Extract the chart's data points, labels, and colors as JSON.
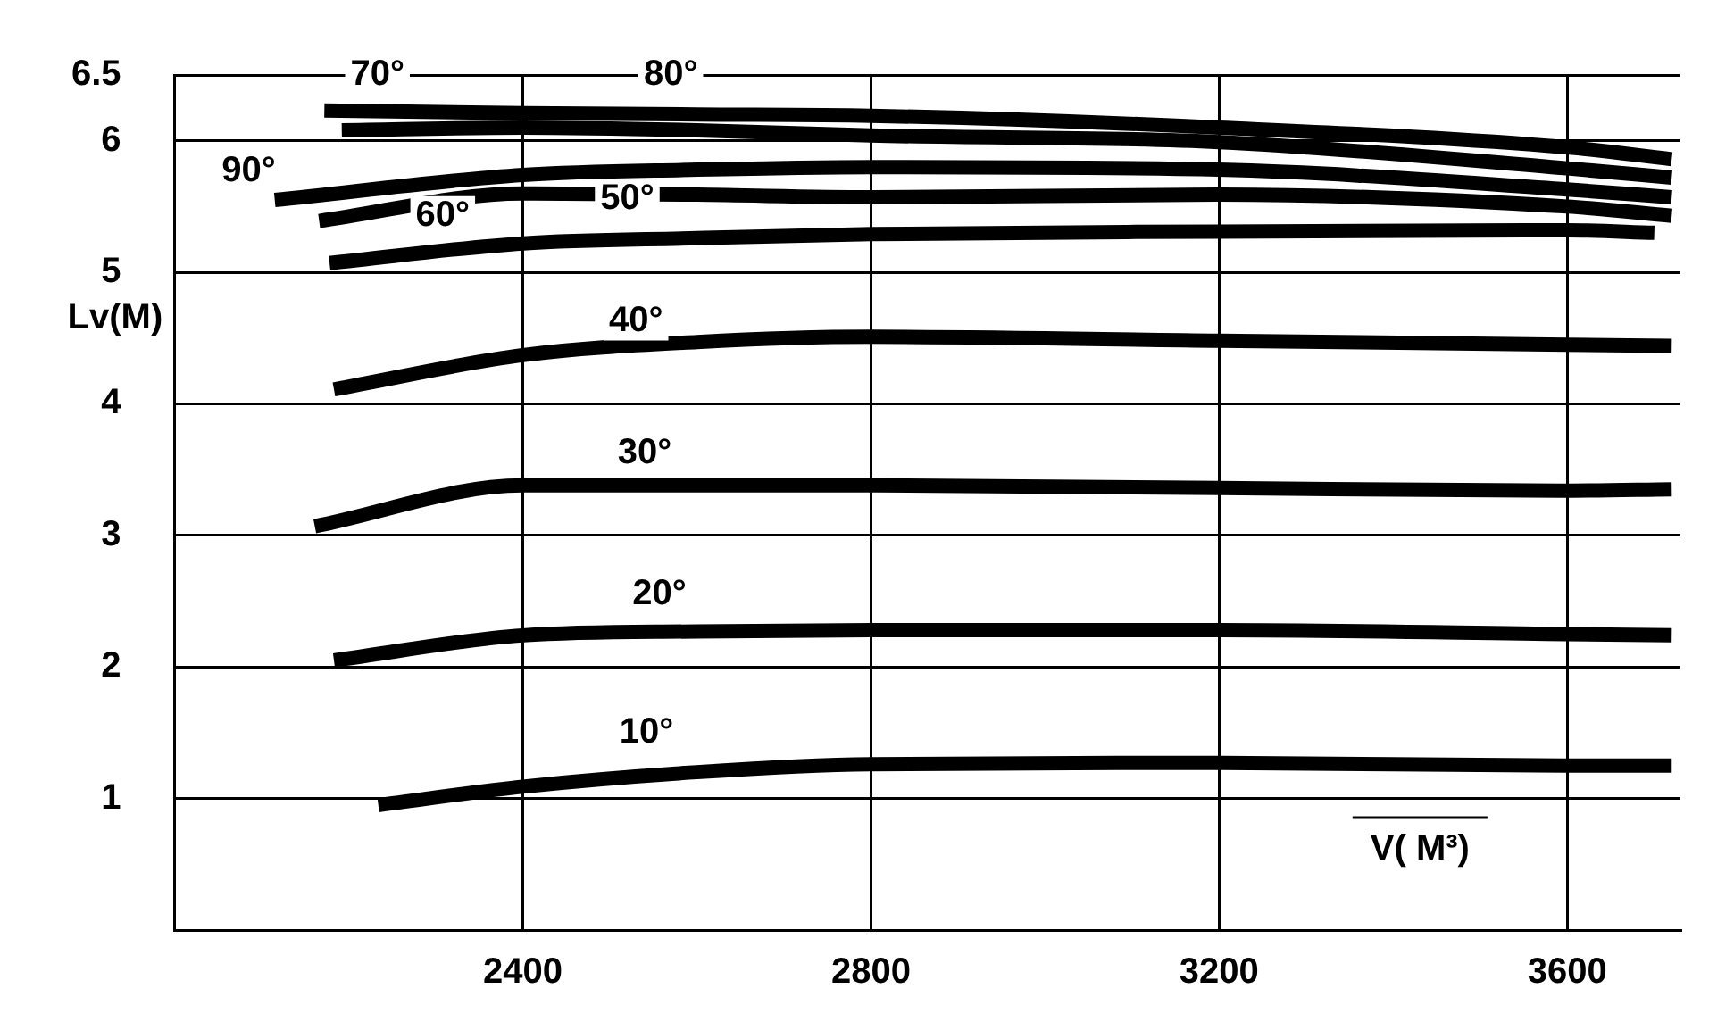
{
  "chart_data": {
    "type": "line",
    "xlabel": "V( M³)",
    "ylabel": "Lv(M)",
    "xlim": [
      2000,
      3730
    ],
    "ylim": [
      0,
      6.5
    ],
    "xticks": [
      2400,
      2800,
      3200,
      3600
    ],
    "yticks": [
      1,
      2,
      3,
      4,
      5,
      6,
      6.5
    ],
    "grid": true,
    "legend": false,
    "marker": "none",
    "line_style": "solid",
    "series": [
      {
        "color": "#000000",
        "x": [
          2234,
          2400,
          2600,
          2800,
          3200,
          3600,
          3720
        ],
        "values": [
          0.95,
          1.09,
          1.2,
          1.26,
          1.27,
          1.25,
          1.25
        ]
      },
      {
        "color": "#000000",
        "x": [
          2183,
          2400,
          2600,
          2800,
          3200,
          3600,
          3720
        ],
        "values": [
          2.05,
          2.24,
          2.27,
          2.28,
          2.28,
          2.25,
          2.24
        ]
      },
      {
        "color": "#000000",
        "x": [
          2161,
          2400,
          2600,
          2800,
          3200,
          3600,
          3720
        ],
        "values": [
          3.07,
          3.38,
          3.38,
          3.38,
          3.36,
          3.34,
          3.35
        ]
      },
      {
        "color": "#000000",
        "x": [
          2183,
          2400,
          2600,
          2800,
          3200,
          3600,
          3720
        ],
        "values": [
          4.11,
          4.37,
          4.47,
          4.51,
          4.48,
          4.45,
          4.44
        ]
      },
      {
        "color": "#000000",
        "x": [
          2178,
          2400,
          2600,
          2800,
          3200,
          3600,
          3700
        ],
        "values": [
          5.07,
          5.22,
          5.26,
          5.29,
          5.31,
          5.32,
          5.3
        ]
      },
      {
        "color": "#000000",
        "x": [
          2166,
          2400,
          2600,
          2800,
          3200,
          3600,
          3720
        ],
        "values": [
          5.39,
          5.6,
          5.59,
          5.57,
          5.59,
          5.5,
          5.43
        ]
      },
      {
        "color": "#000000",
        "x": [
          2115,
          2400,
          2600,
          2800,
          3200,
          3600,
          3720
        ],
        "values": [
          5.55,
          5.74,
          5.78,
          5.8,
          5.78,
          5.63,
          5.57
        ]
      },
      {
        "color": "#000000",
        "x": [
          2192,
          2400,
          2600,
          2800,
          3200,
          3600,
          3720
        ],
        "values": [
          6.08,
          6.1,
          6.08,
          6.04,
          5.99,
          5.79,
          5.72
        ]
      },
      {
        "color": "#000000",
        "x": [
          2172,
          2400,
          2600,
          2800,
          3200,
          3600,
          3720
        ],
        "values": [
          6.23,
          6.21,
          6.2,
          6.19,
          6.1,
          5.95,
          5.86
        ]
      }
    ],
    "annotations": [
      {
        "text": "10°",
        "x": 2542,
        "y": 1.5
      },
      {
        "text": "20°",
        "x": 2557,
        "y": 2.55
      },
      {
        "text": "30°",
        "x": 2540,
        "y": 3.62
      },
      {
        "text": "40°",
        "x": 2530,
        "y": 4.63
      },
      {
        "text": "50°",
        "x": 2520,
        "y": 5.56
      },
      {
        "text": "60°",
        "x": 2308,
        "y": 5.43
      },
      {
        "text": "90°",
        "x": 2085,
        "y": 5.77
      },
      {
        "text": "70°",
        "x": 2233,
        "y": 6.5
      },
      {
        "text": "80°",
        "x": 2570,
        "y": 6.5
      }
    ]
  }
}
